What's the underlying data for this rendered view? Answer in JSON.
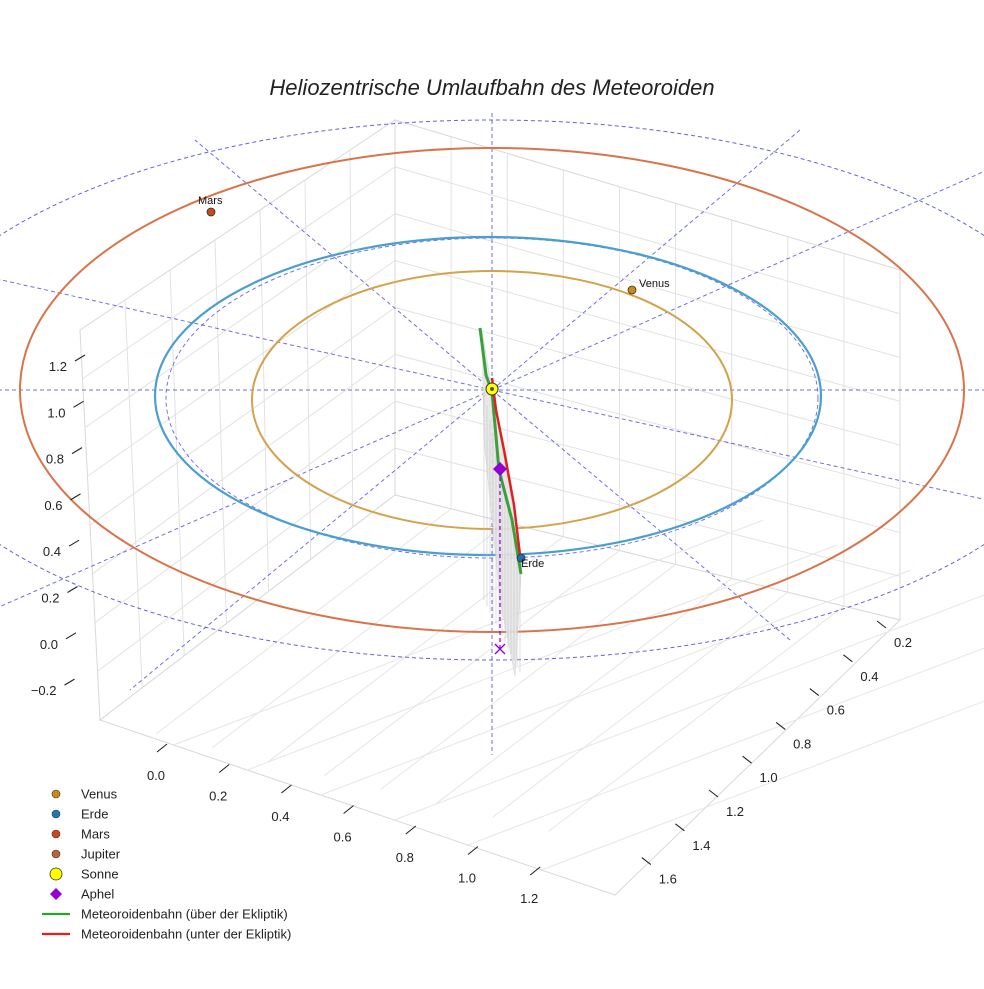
{
  "chart_data": {
    "type": "line",
    "subtype": "3d-orbit-plot",
    "title": "Heliozentrische Umlaufbahn des Meteoroiden",
    "axes": {
      "x": {
        "ticks": [
          "0.0",
          "0.2",
          "0.4",
          "0.6",
          "0.8",
          "1.0",
          "1.2"
        ],
        "range": [
          0.0,
          1.2
        ]
      },
      "y": {
        "ticks": [
          "0.2",
          "0.4",
          "0.6",
          "0.8",
          "1.0",
          "1.2",
          "1.4",
          "1.6"
        ],
        "range": [
          0.2,
          1.6
        ]
      },
      "z": {
        "ticks": [
          "−0.2",
          "0.0",
          "0.2",
          "0.4",
          "0.6",
          "0.8",
          "1.0",
          "1.2"
        ],
        "range": [
          -0.2,
          1.2
        ]
      }
    },
    "orbits": [
      {
        "name": "Venus",
        "radius_au": 0.72,
        "color": "#d4a24a"
      },
      {
        "name": "Erde",
        "radius_au": 1.0,
        "color": "#4a9fd0"
      },
      {
        "name": "Mars",
        "radius_au": 1.52,
        "color": "#d9744a"
      }
    ],
    "planet_labels": [
      {
        "name": "Venus",
        "color": "#c98a1a"
      },
      {
        "name": "Erde",
        "color": "#1f6fb5"
      },
      {
        "name": "Mars",
        "color": "#c74a1a"
      }
    ],
    "series": [
      {
        "name": "Meteoroidenbahn (über der Ekliptik)",
        "color": "#2ca02c"
      },
      {
        "name": "Meteoroidenbahn (unter der Ekliptik)",
        "color": "#e02020"
      }
    ],
    "legend": {
      "placement": "bottom-left",
      "entries": [
        {
          "label": "Venus",
          "marker": "dot",
          "color": "#c98a1a"
        },
        {
          "label": "Erde",
          "marker": "dot",
          "color": "#1f77b4"
        },
        {
          "label": "Mars",
          "marker": "dot",
          "color": "#c7481f"
        },
        {
          "label": "Jupiter",
          "marker": "dot",
          "color": "#b8653a"
        },
        {
          "label": "Sonne",
          "marker": "sun",
          "color": "#ffff00"
        },
        {
          "label": "Aphel",
          "marker": "diamond",
          "color": "#9400d3"
        },
        {
          "label": "Meteoroidenbahn (über der Ekliptik)",
          "marker": "line",
          "color": "#2ca02c"
        },
        {
          "label": "Meteoroidenbahn (unter der Ekliptik)",
          "marker": "line",
          "color": "#e02020"
        }
      ]
    }
  }
}
